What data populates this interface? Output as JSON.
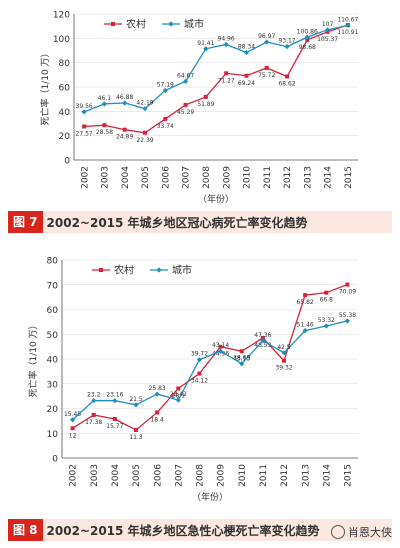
{
  "chart_data": [
    {
      "type": "line",
      "x": [
        "2002",
        "2003",
        "2004",
        "2005",
        "2006",
        "2007",
        "2008",
        "2009",
        "2010",
        "2011",
        "2012",
        "2013",
        "2014",
        "2015"
      ],
      "series": [
        {
          "name": "农村",
          "values": [
            27.57,
            28.58,
            24.89,
            22.39,
            33.74,
            45.29,
            51.89,
            71.27,
            69.24,
            75.72,
            68.62,
            98.68,
            105.37,
            110.91
          ],
          "color": "#d6233a"
        },
        {
          "name": "城市",
          "values": [
            39.56,
            46.1,
            46.88,
            42.19,
            57.19,
            64.67,
            91.41,
            94.96,
            88.34,
            96.97,
            93.17,
            100.86,
            107.0,
            110.67
          ],
          "color": "#1f8fbf"
        }
      ],
      "ylabel": "死亡率（1/10 万）",
      "xlabel": "（年份）",
      "ylim": [
        0,
        120
      ],
      "yticks": [
        0,
        20,
        40,
        60,
        80,
        100,
        120
      ],
      "legend": "top-left",
      "caption_num": "图 7",
      "caption": "2002~2015 年城乡地区冠心病死亡率变化趋势"
    },
    {
      "type": "line",
      "x": [
        "2002",
        "2003",
        "2004",
        "2005",
        "2006",
        "2007",
        "2008",
        "2009",
        "2010",
        "2011",
        "2012",
        "2013",
        "2014",
        "2015"
      ],
      "series": [
        {
          "name": "农村",
          "values": [
            12,
            17.38,
            15.77,
            11.3,
            18.4,
            28.1,
            34.12,
            44.96,
            43.13,
            48.53,
            39.32,
            65.82,
            66.8,
            70.09
          ],
          "color": "#d6233a"
        },
        {
          "name": "城市",
          "values": [
            15.45,
            23.2,
            23.16,
            21.5,
            25.83,
            23.42,
            39.72,
            43.14,
            38.09,
            47.36,
            42.5,
            51.46,
            53.32,
            55.38
          ],
          "color": "#1f8fbf"
        }
      ],
      "ylabel": "死亡率（1/10 万）",
      "xlabel": "（年份）",
      "ylim": [
        0,
        80
      ],
      "yticks": [
        0,
        10,
        20,
        30,
        40,
        50,
        60,
        70,
        80
      ],
      "legend": "top-left",
      "caption_num": "图 8",
      "caption": "2002~2015 年城乡地区急性心梗死亡率变化趋势"
    }
  ],
  "watermark": "肖恩大侠"
}
